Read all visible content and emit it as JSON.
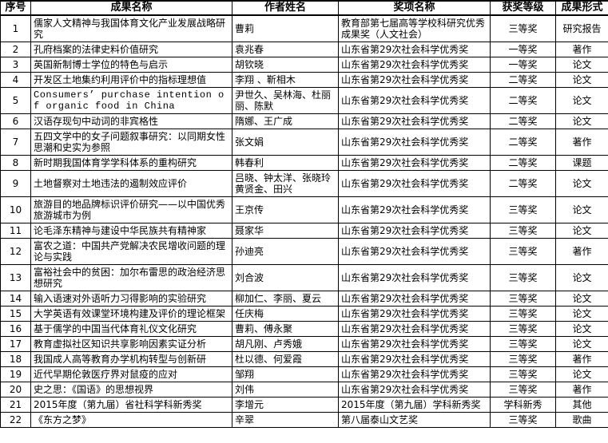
{
  "colors": {
    "border": "#000000",
    "background": "#ffffff",
    "text": "#000000"
  },
  "table": {
    "columns": [
      {
        "key": "index",
        "label": "序号"
      },
      {
        "key": "name",
        "label": "成果名称"
      },
      {
        "key": "authors",
        "label": "作者姓名"
      },
      {
        "key": "award",
        "label": "奖项名称"
      },
      {
        "key": "level",
        "label": "获奖等级"
      },
      {
        "key": "form",
        "label": "成果形式"
      }
    ],
    "rows": [
      {
        "index": "1",
        "name": "儒家人文精神与我国体育文化产业发展战略研究",
        "authors": "曹莉",
        "award": "教育部第七届高等学校科研究优秀成果奖（人文社会）",
        "level": "三等奖",
        "form": "研究报告"
      },
      {
        "index": "2",
        "name": "孔府档案的法律史料价值研究",
        "authors": "袁兆春",
        "award": "山东省第29次社会科学优秀奖",
        "level": "一等奖",
        "form": "著作"
      },
      {
        "index": "3",
        "name": "英国新制博士学位的特色与启示",
        "authors": "胡钦晓",
        "award": "山东省第29次社会科学优秀奖",
        "level": "一等奖",
        "form": "论文"
      },
      {
        "index": "4",
        "name": "开发区土地集约利用评价中的指标理想值",
        "authors": "李翔 、靳相木",
        "award": "山东省第29次社会科学优秀奖",
        "level": "二等奖",
        "form": "论文"
      },
      {
        "index": "5",
        "name": "Consumers’  purchase intention of organic food in China",
        "authors": "尹世久、吴林海、杜丽丽、陈默",
        "award": "山东省第29次社会科学优秀奖",
        "level": "二等奖",
        "form": "论文"
      },
      {
        "index": "6",
        "name": "汉语存现句中动词的非宾格性",
        "authors": "隋娜、王广成",
        "award": "山东省第29次社会科学优秀奖",
        "level": "二等奖",
        "form": "论文"
      },
      {
        "index": "7",
        "name": "五四文学中的女子问题叙事研究：以同期女性思潮和史实为参照",
        "authors": "张文娟",
        "award": "山东省第29次社会科学优秀奖",
        "level": "二等奖",
        "form": "著作"
      },
      {
        "index": "8",
        "name": "新时期我国体育学学科体系的重构研究",
        "authors": "韩春利",
        "award": "山东省第29次社会科学优秀奖",
        "level": "二等奖",
        "form": "课题"
      },
      {
        "index": "9",
        "name": "土地督察对土地违法的遏制效应评价",
        "authors": "吕晓、钟太洋、张晓玲黄贤金、田兴",
        "award": "山东省第29次社会科学优秀奖",
        "level": "二等奖",
        "form": "论文"
      },
      {
        "index": "10",
        "name": "旅游目的地品牌标识评价研究——以中国优秀旅游城市为例",
        "authors": "王京传",
        "award": "山东省第29次社会科学优秀奖",
        "level": "三等奖",
        "form": "论文"
      },
      {
        "index": "11",
        "name": "论毛泽东精神与建设中华民族共有精神家",
        "authors": "聂家华",
        "award": "山东省第29次社会科学优秀奖",
        "level": "三等奖",
        "form": "论文"
      },
      {
        "index": "12",
        "name": "富农之道：中国共产党解决农民增收问题的理论与实践",
        "authors": "孙迪亮",
        "award": "山东省第29次社会科学优秀奖",
        "level": "三等奖",
        "form": "著作"
      },
      {
        "index": "13",
        "name": "富裕社会中的贫困：加尔布雷思的政治经济思想研究",
        "authors": "刘合波",
        "award": "山东省第29次社会科学优秀奖",
        "level": "三等奖",
        "form": "论文"
      },
      {
        "index": "14",
        "name": "输入语速对外语听力习得影响的实验研究",
        "authors": "柳加仁、李丽、夏云",
        "award": "山东省第29次社会科学优秀奖",
        "level": "三等奖",
        "form": "论文"
      },
      {
        "index": "15",
        "name": "大学英语有效课堂环境构建及评价的理论框架",
        "authors": "任庆梅",
        "award": "山东省第29次社会科学优秀奖",
        "level": "三等奖",
        "form": "论文"
      },
      {
        "index": "16",
        "name": "基于儒学的中国当代体育礼仪文化研究",
        "authors": "曹莉、傅永聚",
        "award": "山东省第29次社会科学优秀奖",
        "level": "三等奖",
        "form": "论文"
      },
      {
        "index": "17",
        "name": "教育虚拟社区知识共享影响因素实证分析",
        "authors": "胡凡刚、卢秀娥",
        "award": "山东省第29次社会科学优秀奖",
        "level": "三等奖",
        "form": "论文"
      },
      {
        "index": "18",
        "name": "我国成人高等教育办学机构转型与创新研",
        "authors": "杜以德、何爱霞",
        "award": "山东省第29次社会科学优秀奖",
        "level": "三等奖",
        "form": "著作"
      },
      {
        "index": "19",
        "name": "近代早期伦敦医疗界对鼠疫的应对",
        "authors": "邹翔",
        "award": "山东省第29次社会科学优秀奖",
        "level": "三等奖",
        "form": "论文"
      },
      {
        "index": "20",
        "name": "史之思：《国语》的思想视界",
        "authors": "刘伟",
        "award": "山东省第29次社会科学优秀奖",
        "level": "三等奖",
        "form": "著作"
      },
      {
        "index": "21",
        "name": "2015年度（第九届）省社科学科新秀奖",
        "authors": "李增元",
        "award": "2015年度（第九届）学科新秀奖",
        "level": "学科新秀",
        "form": "其他"
      },
      {
        "index": "22",
        "name": "《东方之梦》",
        "authors": "辛翠",
        "award": "第八届泰山文艺奖",
        "level": "三等奖",
        "form": "歌曲"
      }
    ]
  }
}
